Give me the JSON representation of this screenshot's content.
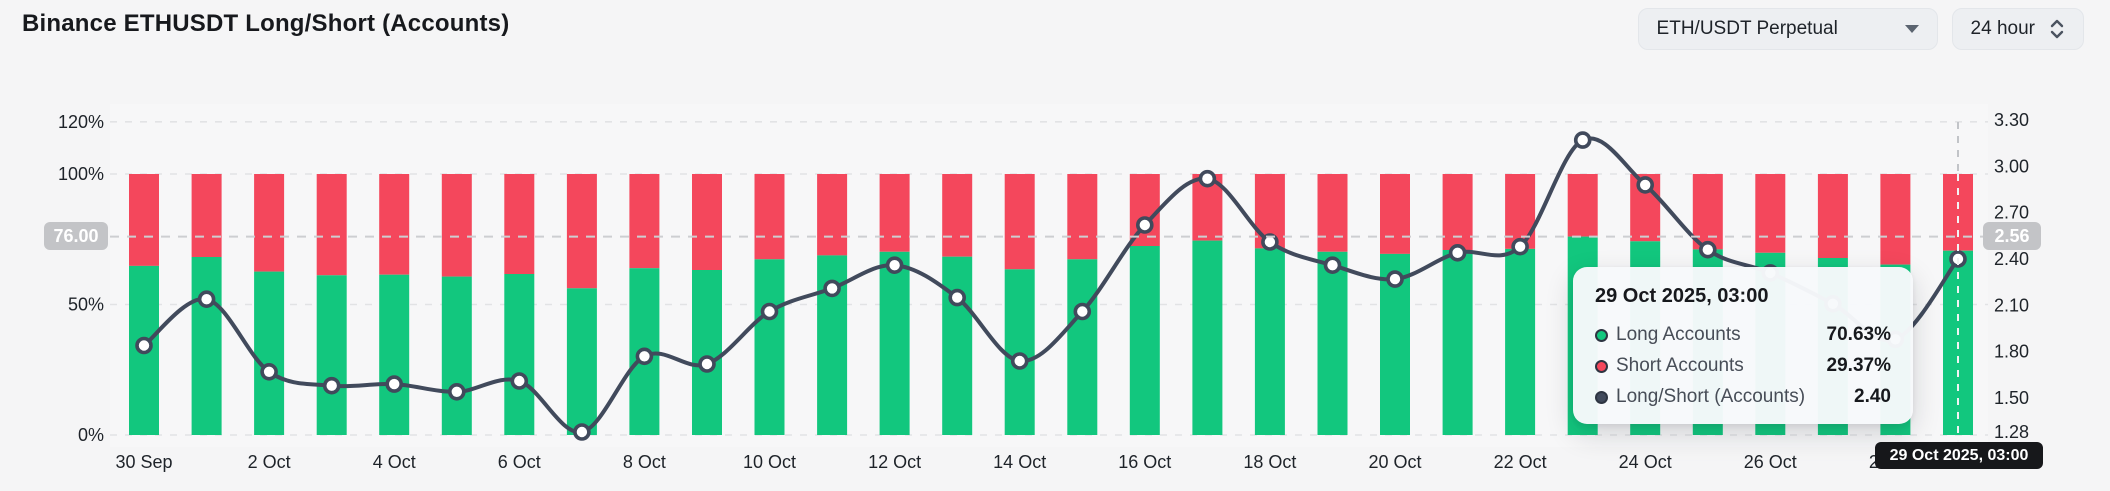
{
  "header": {
    "title": "Binance ETHUSDT Long/Short (Accounts)"
  },
  "controls": {
    "pair_select": {
      "value": "ETH/USDT Perpetual"
    },
    "interval_select": {
      "value": "24 hour"
    }
  },
  "chart_data": {
    "type": "bar",
    "subtype": "stacked-bars-with-line",
    "title": "Binance ETHUSDT Long/Short (Accounts)",
    "categories": [
      "30 Sep",
      "1 Oct",
      "2 Oct",
      "3 Oct",
      "4 Oct",
      "5 Oct",
      "6 Oct",
      "7 Oct",
      "8 Oct",
      "9 Oct",
      "10 Oct",
      "11 Oct",
      "12 Oct",
      "13 Oct",
      "14 Oct",
      "15 Oct",
      "16 Oct",
      "17 Oct",
      "18 Oct",
      "19 Oct",
      "20 Oct",
      "21 Oct",
      "22 Oct",
      "23 Oct",
      "24 Oct",
      "25 Oct",
      "26 Oct",
      "27 Oct",
      "28 Oct",
      "29 Oct"
    ],
    "x_tick_labels": [
      "30 Sep",
      "2 Oct",
      "4 Oct",
      "6 Oct",
      "8 Oct",
      "10 Oct",
      "12 Oct",
      "14 Oct",
      "16 Oct",
      "18 Oct",
      "20 Oct",
      "22 Oct",
      "24 Oct",
      "26 Oct",
      "28 Oct"
    ],
    "x_tick_every": 2,
    "series": [
      {
        "name": "Long Accounts",
        "type": "bar",
        "stack": "accounts",
        "color": "#12c77e",
        "unit": "%",
        "values": [
          64.8,
          68.2,
          62.6,
          61.2,
          61.4,
          60.7,
          61.7,
          56.2,
          63.9,
          63.2,
          67.3,
          68.8,
          70.2,
          68.3,
          63.5,
          67.3,
          72.4,
          74.5,
          71.5,
          70.2,
          69.4,
          70.9,
          71.3,
          76.0,
          74.2,
          71.1,
          69.8,
          67.8,
          65.3,
          70.63
        ]
      },
      {
        "name": "Short Accounts",
        "type": "bar",
        "stack": "accounts",
        "color": "#f4475c",
        "unit": "%",
        "values": [
          35.2,
          31.8,
          37.4,
          38.8,
          38.6,
          39.3,
          38.3,
          43.8,
          36.1,
          36.8,
          32.7,
          31.2,
          29.8,
          31.7,
          36.5,
          32.7,
          27.6,
          25.5,
          28.5,
          29.8,
          30.6,
          29.1,
          28.7,
          24.0,
          25.8,
          28.9,
          30.2,
          32.2,
          34.7,
          29.37
        ]
      },
      {
        "name": "Long/Short (Accounts)",
        "type": "line",
        "axis": "right",
        "color": "#414a5c",
        "values": [
          1.84,
          2.14,
          1.67,
          1.58,
          1.59,
          1.54,
          1.61,
          1.28,
          1.77,
          1.72,
          2.06,
          2.21,
          2.36,
          2.15,
          1.74,
          2.06,
          2.62,
          2.92,
          2.51,
          2.36,
          2.27,
          2.44,
          2.48,
          3.17,
          2.88,
          2.46,
          2.31,
          2.11,
          1.88,
          2.4
        ]
      }
    ],
    "left_axis": {
      "tick_labels": [
        "120%",
        "100%",
        "50%",
        "0%"
      ],
      "tick_values": [
        120,
        100,
        50,
        0
      ],
      "min": 0,
      "max": 120
    },
    "right_axis": {
      "tick_labels": [
        "3.30",
        "3.00",
        "2.70",
        "2.40",
        "2.10",
        "1.80",
        "1.50",
        "1.28"
      ],
      "tick_values": [
        3.3,
        3.0,
        2.7,
        2.4,
        2.1,
        1.8,
        1.5,
        1.28
      ],
      "min": 1.28,
      "max": 3.3
    },
    "grid": "horizontal-dashed",
    "legend_position": "none"
  },
  "crosshair": {
    "left_badge": "76.00",
    "right_badge": "2.56",
    "bottom_badge": "29 Oct 2025, 03:00",
    "left_value": 76.0,
    "right_value": 2.56,
    "x_category": "29 Oct"
  },
  "tooltip": {
    "title": "29 Oct 2025, 03:00",
    "rows": [
      {
        "label": "Long Accounts",
        "value": "70.63%",
        "color": "#12c77e"
      },
      {
        "label": "Short Accounts",
        "value": "29.37%",
        "color": "#f4475c"
      },
      {
        "label": "Long/Short (Accounts)",
        "value": "2.40",
        "color": "#414a5c"
      }
    ]
  }
}
